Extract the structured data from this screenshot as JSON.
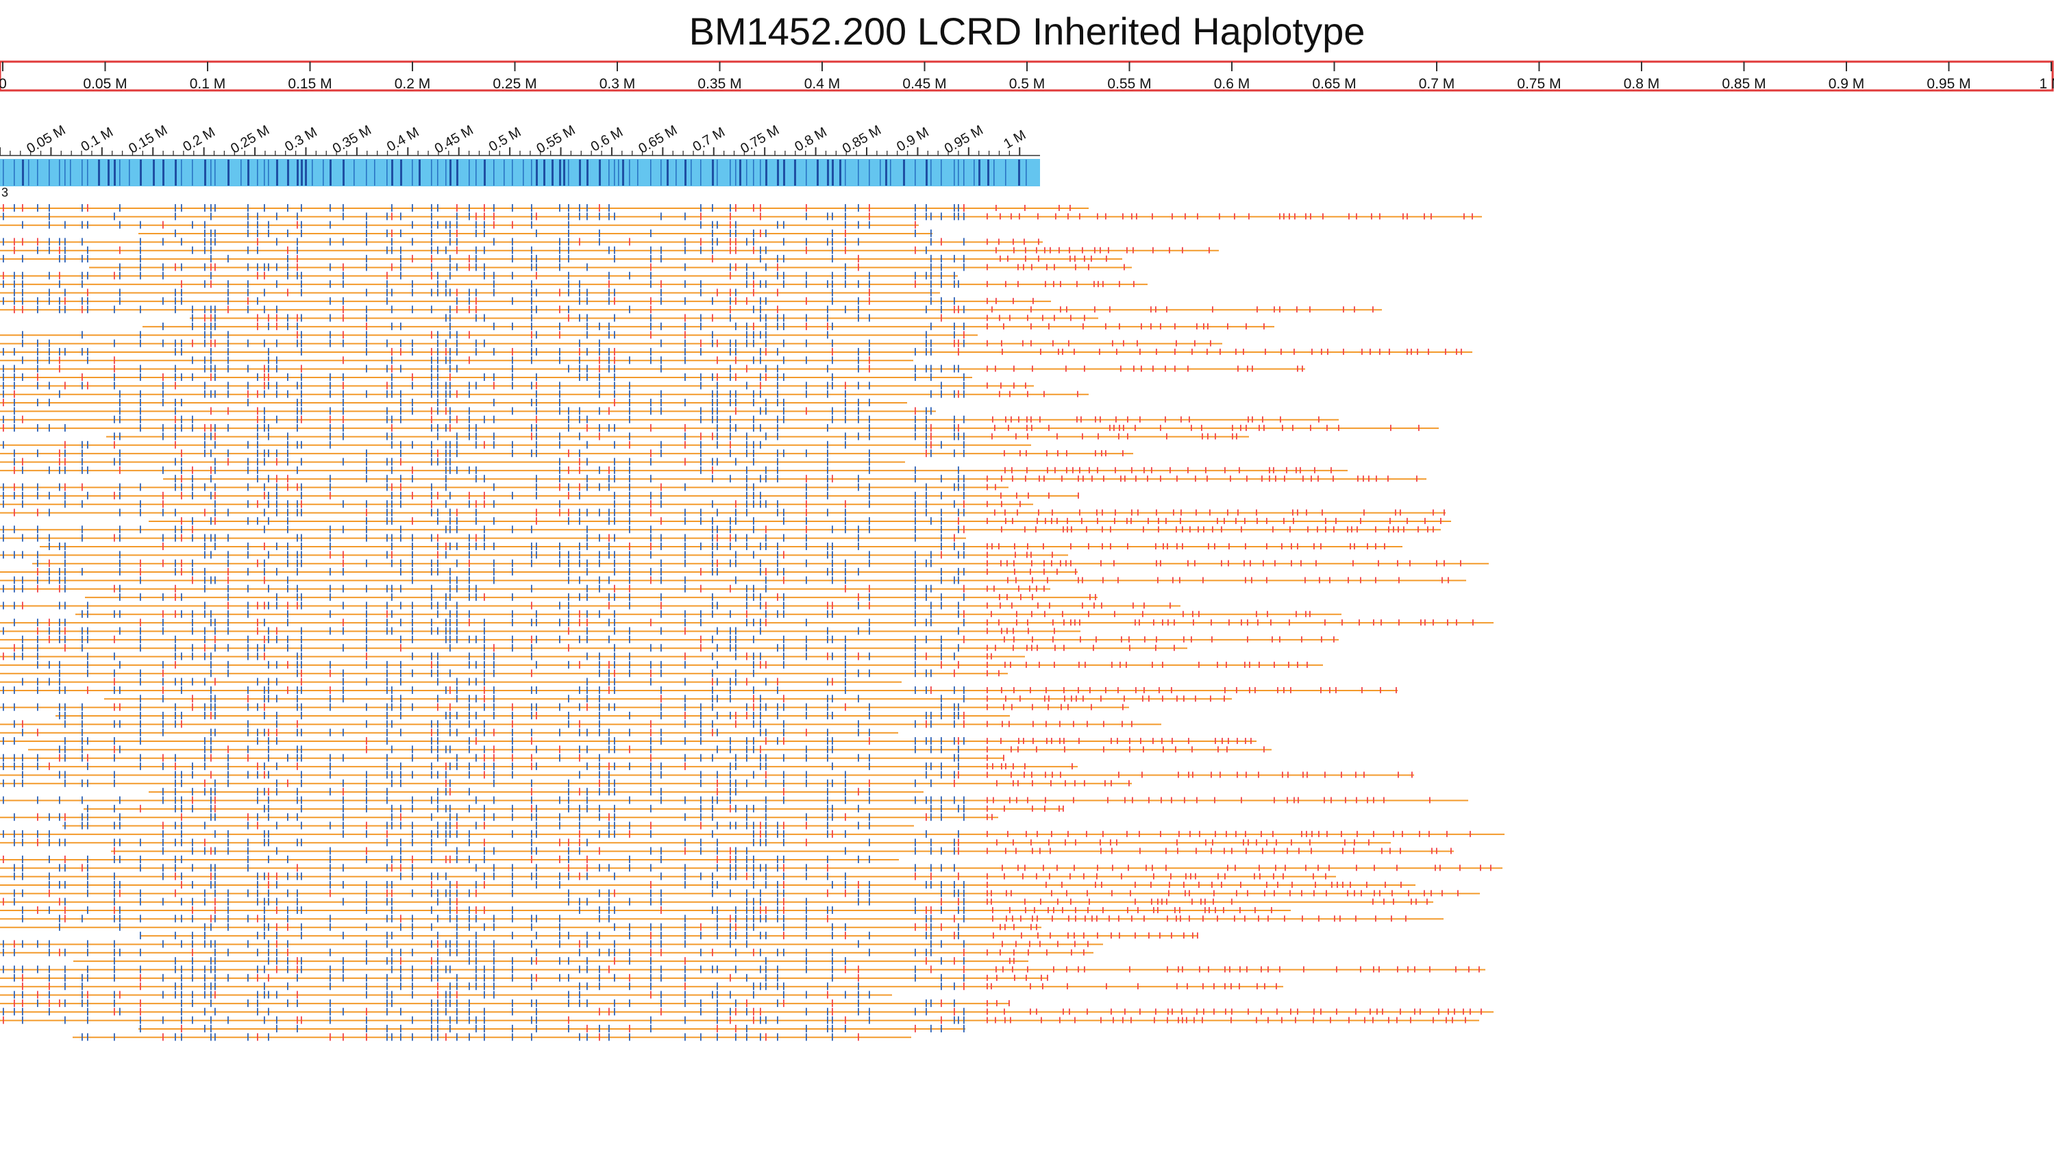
{
  "title": "BM1452.200 LCRD Inherited Haplotype",
  "colors": {
    "ruler_border": "#e03a3a",
    "scaffold_fill": "#64c5ef",
    "scaffold_marks": "#1f4fa3",
    "read_line": "#f39a2b",
    "inherited_marks": "#2f63b8",
    "other_marks": "#f2444a"
  },
  "chart_data": {
    "type": "other",
    "top_ruler": {
      "xlim": [
        0,
        1
      ],
      "ticks": [
        0,
        0.05,
        0.1,
        0.15,
        0.2,
        0.25,
        0.3,
        0.35,
        0.4,
        0.45,
        0.5,
        0.55,
        0.6,
        0.65,
        0.7,
        0.75,
        0.8,
        0.85,
        0.9,
        0.95,
        1
      ],
      "tick_labels": [
        "0",
        "0.05 M",
        "0.1 M",
        "0.15 M",
        "0.2 M",
        "0.25 M",
        "0.3 M",
        "0.35 M",
        "0.4 M",
        "0.45 M",
        "0.5 M",
        "0.55 M",
        "0.6 M",
        "0.65 M",
        "0.7 M",
        "0.75 M",
        "0.8 M",
        "0.85 M",
        "0.9 M",
        "0.95 M",
        "1 M"
      ]
    },
    "scaffold_ruler": {
      "xlim": [
        0,
        1.02
      ],
      "ticks": [
        0.05,
        0.1,
        0.15,
        0.2,
        0.25,
        0.3,
        0.35,
        0.4,
        0.45,
        0.5,
        0.55,
        0.6,
        0.65,
        0.7,
        0.75,
        0.8,
        0.85,
        0.9,
        0.95,
        1
      ],
      "tick_labels": [
        "0.05 M",
        "0.1 M",
        "0.15 M",
        "0.2 M",
        "0.25 M",
        "0.3 M",
        "0.35 M",
        "0.4 M",
        "0.45 M",
        "0.5 M",
        "0.55 M",
        "0.6 M",
        "0.65 M",
        "0.7 M",
        "0.75 M",
        "0.8 M",
        "0.85 M",
        "0.9 M",
        "0.95 M",
        "1 M"
      ]
    },
    "row_count_label": "3",
    "read_rows_estimated": 99
  }
}
